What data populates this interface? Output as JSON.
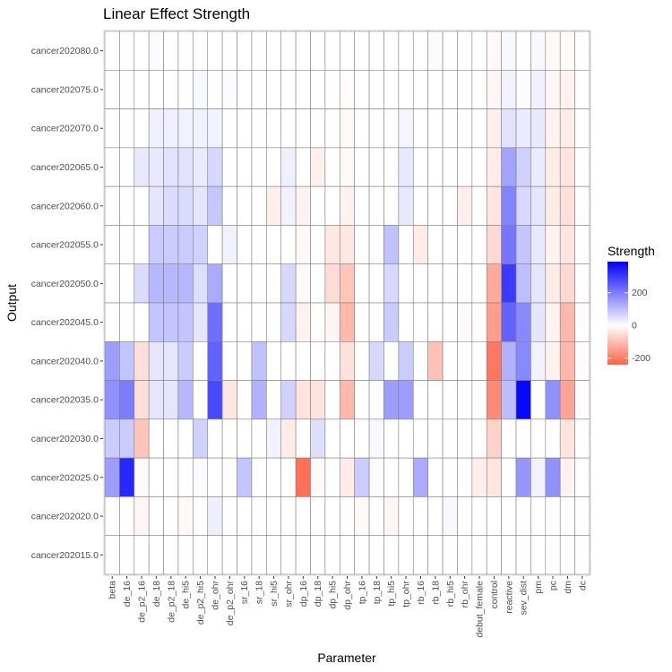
{
  "chart_data": {
    "type": "heatmap",
    "title": "Linear Effect Strength",
    "xlabel": "Parameter",
    "ylabel": "Output",
    "x": [
      "beta",
      "de_16",
      "de_p2_16",
      "de_18",
      "de_p2_18",
      "de_hi5",
      "de_p2_hi5",
      "de_ohr",
      "de_p2_ohr",
      "sr_16",
      "sr_18",
      "sr_hi5",
      "sr_ohr",
      "dp_16",
      "dp_18",
      "dp_hi5",
      "dp_ohr",
      "tp_16",
      "tp_18",
      "tp_hi5",
      "tp_ohr",
      "rb_16",
      "rb_18",
      "rb_hi5",
      "rb_ohr",
      "debut_female",
      "control",
      "reactive",
      "sev_dist",
      "pm",
      "pc",
      "dm",
      "dc"
    ],
    "y": [
      "cancer202080.0",
      "cancer202075.0",
      "cancer202070.0",
      "cancer202065.0",
      "cancer202060.0",
      "cancer202055.0",
      "cancer202050.0",
      "cancer202045.0",
      "cancer202040.0",
      "cancer202035.0",
      "cancer202030.0",
      "cancer202025.0",
      "cancer202020.0",
      "cancer202015.0"
    ],
    "values": [
      [
        0,
        0,
        0,
        5,
        0,
        0,
        0,
        0,
        0,
        0,
        0,
        0,
        0,
        0,
        0,
        0,
        0,
        0,
        0,
        0,
        0,
        0,
        5,
        0,
        0,
        0,
        -10,
        10,
        0,
        10,
        -10,
        -10,
        0
      ],
      [
        0,
        0,
        0,
        0,
        0,
        0,
        10,
        0,
        5,
        0,
        0,
        0,
        0,
        0,
        0,
        0,
        -5,
        0,
        0,
        0,
        0,
        0,
        0,
        0,
        0,
        0,
        -15,
        20,
        5,
        25,
        -15,
        -20,
        0
      ],
      [
        0,
        0,
        0,
        25,
        25,
        20,
        20,
        20,
        0,
        0,
        0,
        0,
        0,
        0,
        0,
        0,
        -10,
        0,
        0,
        0,
        15,
        0,
        0,
        0,
        0,
        0,
        -25,
        45,
        30,
        35,
        -20,
        -30,
        0
      ],
      [
        0,
        0,
        35,
        35,
        45,
        45,
        30,
        60,
        0,
        0,
        0,
        0,
        25,
        0,
        -25,
        0,
        -10,
        0,
        0,
        0,
        35,
        0,
        0,
        0,
        0,
        0,
        -30,
        140,
        70,
        30,
        -30,
        -40,
        0
      ],
      [
        0,
        0,
        0,
        40,
        55,
        55,
        40,
        85,
        0,
        0,
        0,
        -25,
        20,
        -20,
        0,
        0,
        -20,
        0,
        0,
        0,
        35,
        0,
        0,
        0,
        -25,
        0,
        -40,
        190,
        60,
        40,
        -30,
        -50,
        0
      ],
      [
        0,
        0,
        0,
        80,
        80,
        80,
        70,
        0,
        20,
        0,
        0,
        0,
        0,
        -10,
        0,
        -35,
        -35,
        0,
        0,
        95,
        0,
        -30,
        0,
        0,
        0,
        0,
        -60,
        210,
        90,
        35,
        -20,
        -40,
        0
      ],
      [
        0,
        0,
        55,
        110,
        110,
        110,
        50,
        130,
        0,
        0,
        0,
        0,
        60,
        -10,
        0,
        -55,
        -90,
        0,
        0,
        60,
        0,
        0,
        0,
        0,
        0,
        0,
        -130,
        300,
        100,
        40,
        -30,
        -60,
        0
      ],
      [
        0,
        0,
        0,
        90,
        90,
        90,
        40,
        220,
        0,
        0,
        0,
        0,
        60,
        -20,
        0,
        -15,
        -110,
        0,
        0,
        80,
        0,
        0,
        0,
        0,
        -10,
        0,
        -150,
        240,
        180,
        40,
        -20,
        -110,
        0
      ],
      [
        150,
        90,
        -50,
        40,
        40,
        80,
        0,
        240,
        0,
        0,
        95,
        0,
        0,
        0,
        0,
        0,
        -45,
        0,
        60,
        0,
        80,
        0,
        -95,
        0,
        0,
        0,
        -210,
        120,
        180,
        20,
        -20,
        -110,
        0
      ],
      [
        170,
        200,
        -50,
        40,
        40,
        110,
        0,
        280,
        -40,
        0,
        120,
        0,
        70,
        -45,
        -45,
        0,
        -110,
        0,
        0,
        150,
        150,
        0,
        0,
        0,
        0,
        0,
        -180,
        100,
        380,
        0,
        170,
        -140,
        0
      ],
      [
        80,
        80,
        -90,
        0,
        0,
        0,
        70,
        0,
        0,
        0,
        0,
        20,
        -30,
        0,
        50,
        0,
        0,
        0,
        10,
        0,
        0,
        0,
        0,
        0,
        0,
        0,
        -70,
        0,
        0,
        0,
        0,
        -40,
        0
      ],
      [
        150,
        330,
        -10,
        0,
        0,
        0,
        5,
        0,
        0,
        90,
        0,
        0,
        0,
        -220,
        -10,
        0,
        -30,
        80,
        5,
        0,
        0,
        130,
        0,
        0,
        0,
        -25,
        -40,
        0,
        160,
        20,
        170,
        -20,
        0
      ],
      [
        0,
        0,
        -15,
        0,
        0,
        -10,
        0,
        25,
        0,
        0,
        0,
        0,
        0,
        0,
        0,
        0,
        0,
        -10,
        0,
        -15,
        0,
        0,
        0,
        10,
        0,
        0,
        0,
        0,
        0,
        0,
        0,
        0,
        0
      ],
      [
        0,
        0,
        0,
        0,
        0,
        0,
        0,
        0,
        0,
        0,
        0,
        0,
        0,
        0,
        0,
        0,
        0,
        0,
        0,
        0,
        0,
        0,
        0,
        0,
        0,
        0,
        0,
        0,
        0,
        0,
        0,
        0,
        0
      ]
    ],
    "legend": {
      "title": "Strength",
      "ticks": [
        -200,
        0,
        200
      ],
      "range": [
        -240,
        390
      ],
      "colors": {
        "low": "#ff6347",
        "mid": "#ffffff",
        "high": "#0000ff"
      },
      "position": "right"
    },
    "panel_background": "#ebebeb",
    "gridline_color": "#ffffff",
    "tile_border": "#808080",
    "na_color": "#ffffff"
  }
}
